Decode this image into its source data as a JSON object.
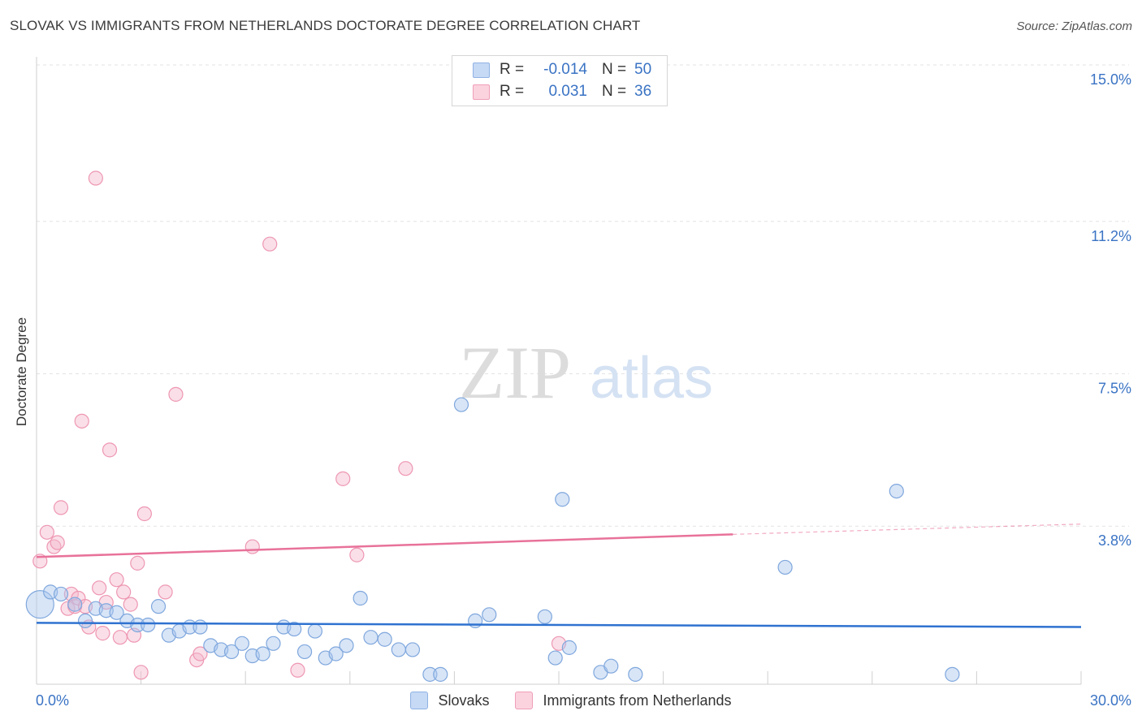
{
  "header": {
    "title": "SLOVAK VS IMMIGRANTS FROM NETHERLANDS DOCTORATE DEGREE CORRELATION CHART",
    "source": "Source: ZipAtlas.com"
  },
  "watermark": {
    "zip": "ZIP",
    "atlas": "atlas"
  },
  "legend": {
    "rows": [
      {
        "r_label": "R =",
        "r_value": "-0.014",
        "n_label": "N =",
        "n_value": "50",
        "color": "#a9c6ee"
      },
      {
        "r_label": "R =",
        "r_value": "0.031",
        "n_label": "N =",
        "n_value": "36",
        "color": "#f5b8cb"
      }
    ]
  },
  "bottom_legend": {
    "series1": "Slovaks",
    "series2": "Immigrants from Netherlands"
  },
  "colors": {
    "blue_fill": "#a9c6ee",
    "blue_stroke": "#7fa7dd",
    "blue_line": "#2f72d0",
    "pink_fill": "#f5b8cb",
    "pink_stroke": "#ee97b2",
    "pink_line": "#e8729a",
    "tick_label": "#3a73c4"
  },
  "chart_data": {
    "type": "scatter",
    "title": "SLOVAK VS IMMIGRANTS FROM NETHERLANDS DOCTORATE DEGREE CORRELATION CHART",
    "xlabel": "",
    "ylabel": "Doctorate Degree",
    "xlim": [
      0,
      30
    ],
    "ylim": [
      0,
      15
    ],
    "x_tick_labels": [
      "0.0%",
      "30.0%"
    ],
    "y_ticks": [
      3.8,
      7.5,
      11.2,
      15.0
    ],
    "y_tick_labels": [
      "3.8%",
      "7.5%",
      "11.2%",
      "15.0%"
    ],
    "grid": "horizontal dashed",
    "legend_position": "top-center",
    "series": [
      {
        "name": "Slovaks",
        "r": -0.014,
        "n": 50,
        "trend": {
          "x": [
            0,
            30
          ],
          "y": [
            1.45,
            1.35
          ]
        },
        "points": [
          [
            0.1,
            1.9
          ],
          [
            0.4,
            2.2
          ],
          [
            0.7,
            2.15
          ],
          [
            1.1,
            1.9
          ],
          [
            1.4,
            1.5
          ],
          [
            1.7,
            1.8
          ],
          [
            2.0,
            1.75
          ],
          [
            2.3,
            1.7
          ],
          [
            2.6,
            1.5
          ],
          [
            2.9,
            1.4
          ],
          [
            3.2,
            1.4
          ],
          [
            3.5,
            1.85
          ],
          [
            3.8,
            1.15
          ],
          [
            4.1,
            1.25
          ],
          [
            4.4,
            1.35
          ],
          [
            4.7,
            1.35
          ],
          [
            5.0,
            0.9
          ],
          [
            5.3,
            0.8
          ],
          [
            5.6,
            0.75
          ],
          [
            5.9,
            0.95
          ],
          [
            6.2,
            0.65
          ],
          [
            6.5,
            0.7
          ],
          [
            6.8,
            0.95
          ],
          [
            7.1,
            1.35
          ],
          [
            7.4,
            1.3
          ],
          [
            7.7,
            0.75
          ],
          [
            8.0,
            1.25
          ],
          [
            8.3,
            0.6
          ],
          [
            8.6,
            0.7
          ],
          [
            8.9,
            0.9
          ],
          [
            9.3,
            2.05
          ],
          [
            9.6,
            1.1
          ],
          [
            10.0,
            1.05
          ],
          [
            10.4,
            0.8
          ],
          [
            10.8,
            0.8
          ],
          [
            11.3,
            0.2
          ],
          [
            11.6,
            0.2
          ],
          [
            12.2,
            6.75
          ],
          [
            12.6,
            1.5
          ],
          [
            13.0,
            1.65
          ],
          [
            14.6,
            1.6
          ],
          [
            14.9,
            0.6
          ],
          [
            15.1,
            4.45
          ],
          [
            15.3,
            0.85
          ],
          [
            16.2,
            0.25
          ],
          [
            16.5,
            0.4
          ],
          [
            17.2,
            0.2
          ],
          [
            21.5,
            2.8
          ],
          [
            24.7,
            4.65
          ],
          [
            26.3,
            0.2
          ]
        ]
      },
      {
        "name": "Immigrants from Netherlands",
        "r": 0.031,
        "n": 36,
        "trend": {
          "x": [
            0,
            20
          ],
          "y": [
            3.05,
            3.6
          ]
        },
        "trend_dashed": {
          "x": [
            20,
            30
          ],
          "y": [
            3.6,
            3.85
          ]
        },
        "points": [
          [
            0.1,
            2.95
          ],
          [
            0.3,
            3.65
          ],
          [
            0.5,
            3.3
          ],
          [
            0.6,
            3.4
          ],
          [
            0.7,
            4.25
          ],
          [
            0.9,
            1.8
          ],
          [
            1.0,
            2.15
          ],
          [
            1.1,
            1.85
          ],
          [
            1.2,
            2.05
          ],
          [
            1.3,
            6.35
          ],
          [
            1.4,
            1.85
          ],
          [
            1.5,
            1.35
          ],
          [
            1.7,
            12.25
          ],
          [
            1.8,
            2.3
          ],
          [
            1.9,
            1.2
          ],
          [
            2.0,
            1.95
          ],
          [
            2.1,
            5.65
          ],
          [
            2.3,
            2.5
          ],
          [
            2.4,
            1.1
          ],
          [
            2.5,
            2.2
          ],
          [
            2.7,
            1.9
          ],
          [
            2.8,
            1.15
          ],
          [
            2.9,
            2.9
          ],
          [
            3.0,
            0.25
          ],
          [
            3.1,
            4.1
          ],
          [
            3.7,
            2.2
          ],
          [
            4.0,
            7.0
          ],
          [
            4.6,
            0.55
          ],
          [
            4.7,
            0.7
          ],
          [
            6.2,
            3.3
          ],
          [
            6.7,
            10.65
          ],
          [
            7.5,
            0.3
          ],
          [
            8.8,
            4.95
          ],
          [
            9.2,
            3.1
          ],
          [
            10.6,
            5.2
          ],
          [
            15.0,
            0.95
          ]
        ]
      }
    ]
  }
}
